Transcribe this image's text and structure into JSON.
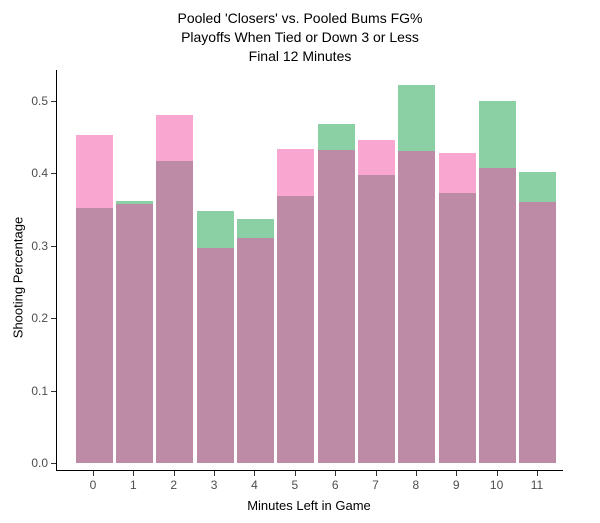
{
  "title": {
    "line1": "Pooled 'Closers' vs. Pooled Bums FG%",
    "line2": "Playoffs When Tied or Down 3 or Less",
    "line3": "Final 12 Minutes"
  },
  "chart_data": {
    "type": "bar",
    "subtype": "overlaid-bars",
    "title": "Pooled 'Closers' vs. Pooled Bums FG% Playoffs When Tied or Down 3 or Less Final 12 Minutes",
    "xlabel": "Minutes Left in Game",
    "ylabel": "Shooting Percentage",
    "categories": [
      "0",
      "1",
      "2",
      "3",
      "4",
      "5",
      "6",
      "7",
      "8",
      "9",
      "10",
      "11"
    ],
    "series": [
      {
        "name": "pink-series",
        "color": "#F9A7D0",
        "values": [
          0.452,
          0.357,
          0.48,
          0.297,
          0.31,
          0.433,
          0.432,
          0.446,
          0.43,
          0.428,
          0.407,
          0.36
        ]
      },
      {
        "name": "green-series",
        "color": "#8BCFA4",
        "values": [
          0.352,
          0.362,
          0.417,
          0.347,
          0.337,
          0.368,
          0.467,
          0.397,
          0.521,
          0.372,
          0.5,
          0.401
        ]
      }
    ],
    "overlap_color": "#BD8BA6",
    "ylim": [
      0.0,
      0.545
    ],
    "yticks": [
      "0.0",
      "0.1",
      "0.2",
      "0.3",
      "0.4",
      "0.5"
    ],
    "grid": "off",
    "legend": "none",
    "axis_color": "#000000",
    "tick_text_color": "#4d4d4d"
  }
}
